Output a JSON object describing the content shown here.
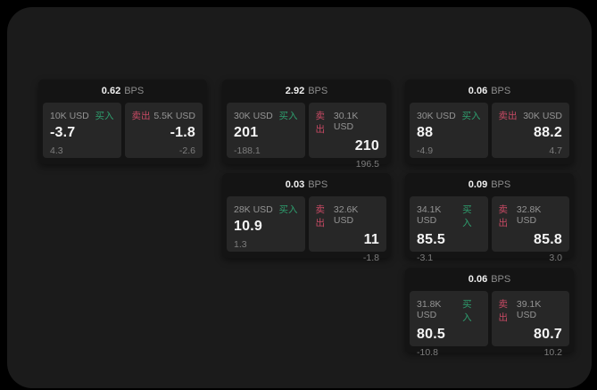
{
  "labels": {
    "buy": "买入",
    "sell": "卖出",
    "bps": "BPS"
  },
  "colors": {
    "page_bg": "#000000",
    "window_bg": "#1b1b1b",
    "card_bg": "#141414",
    "panel_bg": "#272727",
    "buy_green": "#2e9e6e",
    "sell_red": "#c84a64"
  },
  "cards": [
    {
      "bps": "0.62",
      "buy": {
        "size": "10K USD",
        "value": "-3.7",
        "delta": "4.3"
      },
      "sell": {
        "size": "5.5K USD",
        "value": "-1.8",
        "delta": "-2.6"
      }
    },
    {
      "bps": "2.92",
      "buy": {
        "size": "30K USD",
        "value": "201",
        "delta": "-188.1"
      },
      "sell": {
        "size": "30.1K USD",
        "value": "210",
        "delta": "196.5"
      }
    },
    {
      "bps": "0.06",
      "buy": {
        "size": "30K USD",
        "value": "88",
        "delta": "-4.9"
      },
      "sell": {
        "size": "30K USD",
        "value": "88.2",
        "delta": "4.7"
      }
    },
    {
      "bps": "0.03",
      "buy": {
        "size": "28K USD",
        "value": "10.9",
        "delta": "1.3"
      },
      "sell": {
        "size": "32.6K USD",
        "value": "11",
        "delta": "-1.8"
      }
    },
    {
      "bps": "0.09",
      "buy": {
        "size": "34.1K USD",
        "value": "85.5",
        "delta": "-3.1"
      },
      "sell": {
        "size": "32.8K USD",
        "value": "85.8",
        "delta": "3.0"
      }
    },
    {
      "bps": "0.06",
      "buy": {
        "size": "31.8K USD",
        "value": "80.5",
        "delta": "-10.8"
      },
      "sell": {
        "size": "39.1K USD",
        "value": "80.7",
        "delta": "10.2"
      }
    }
  ]
}
